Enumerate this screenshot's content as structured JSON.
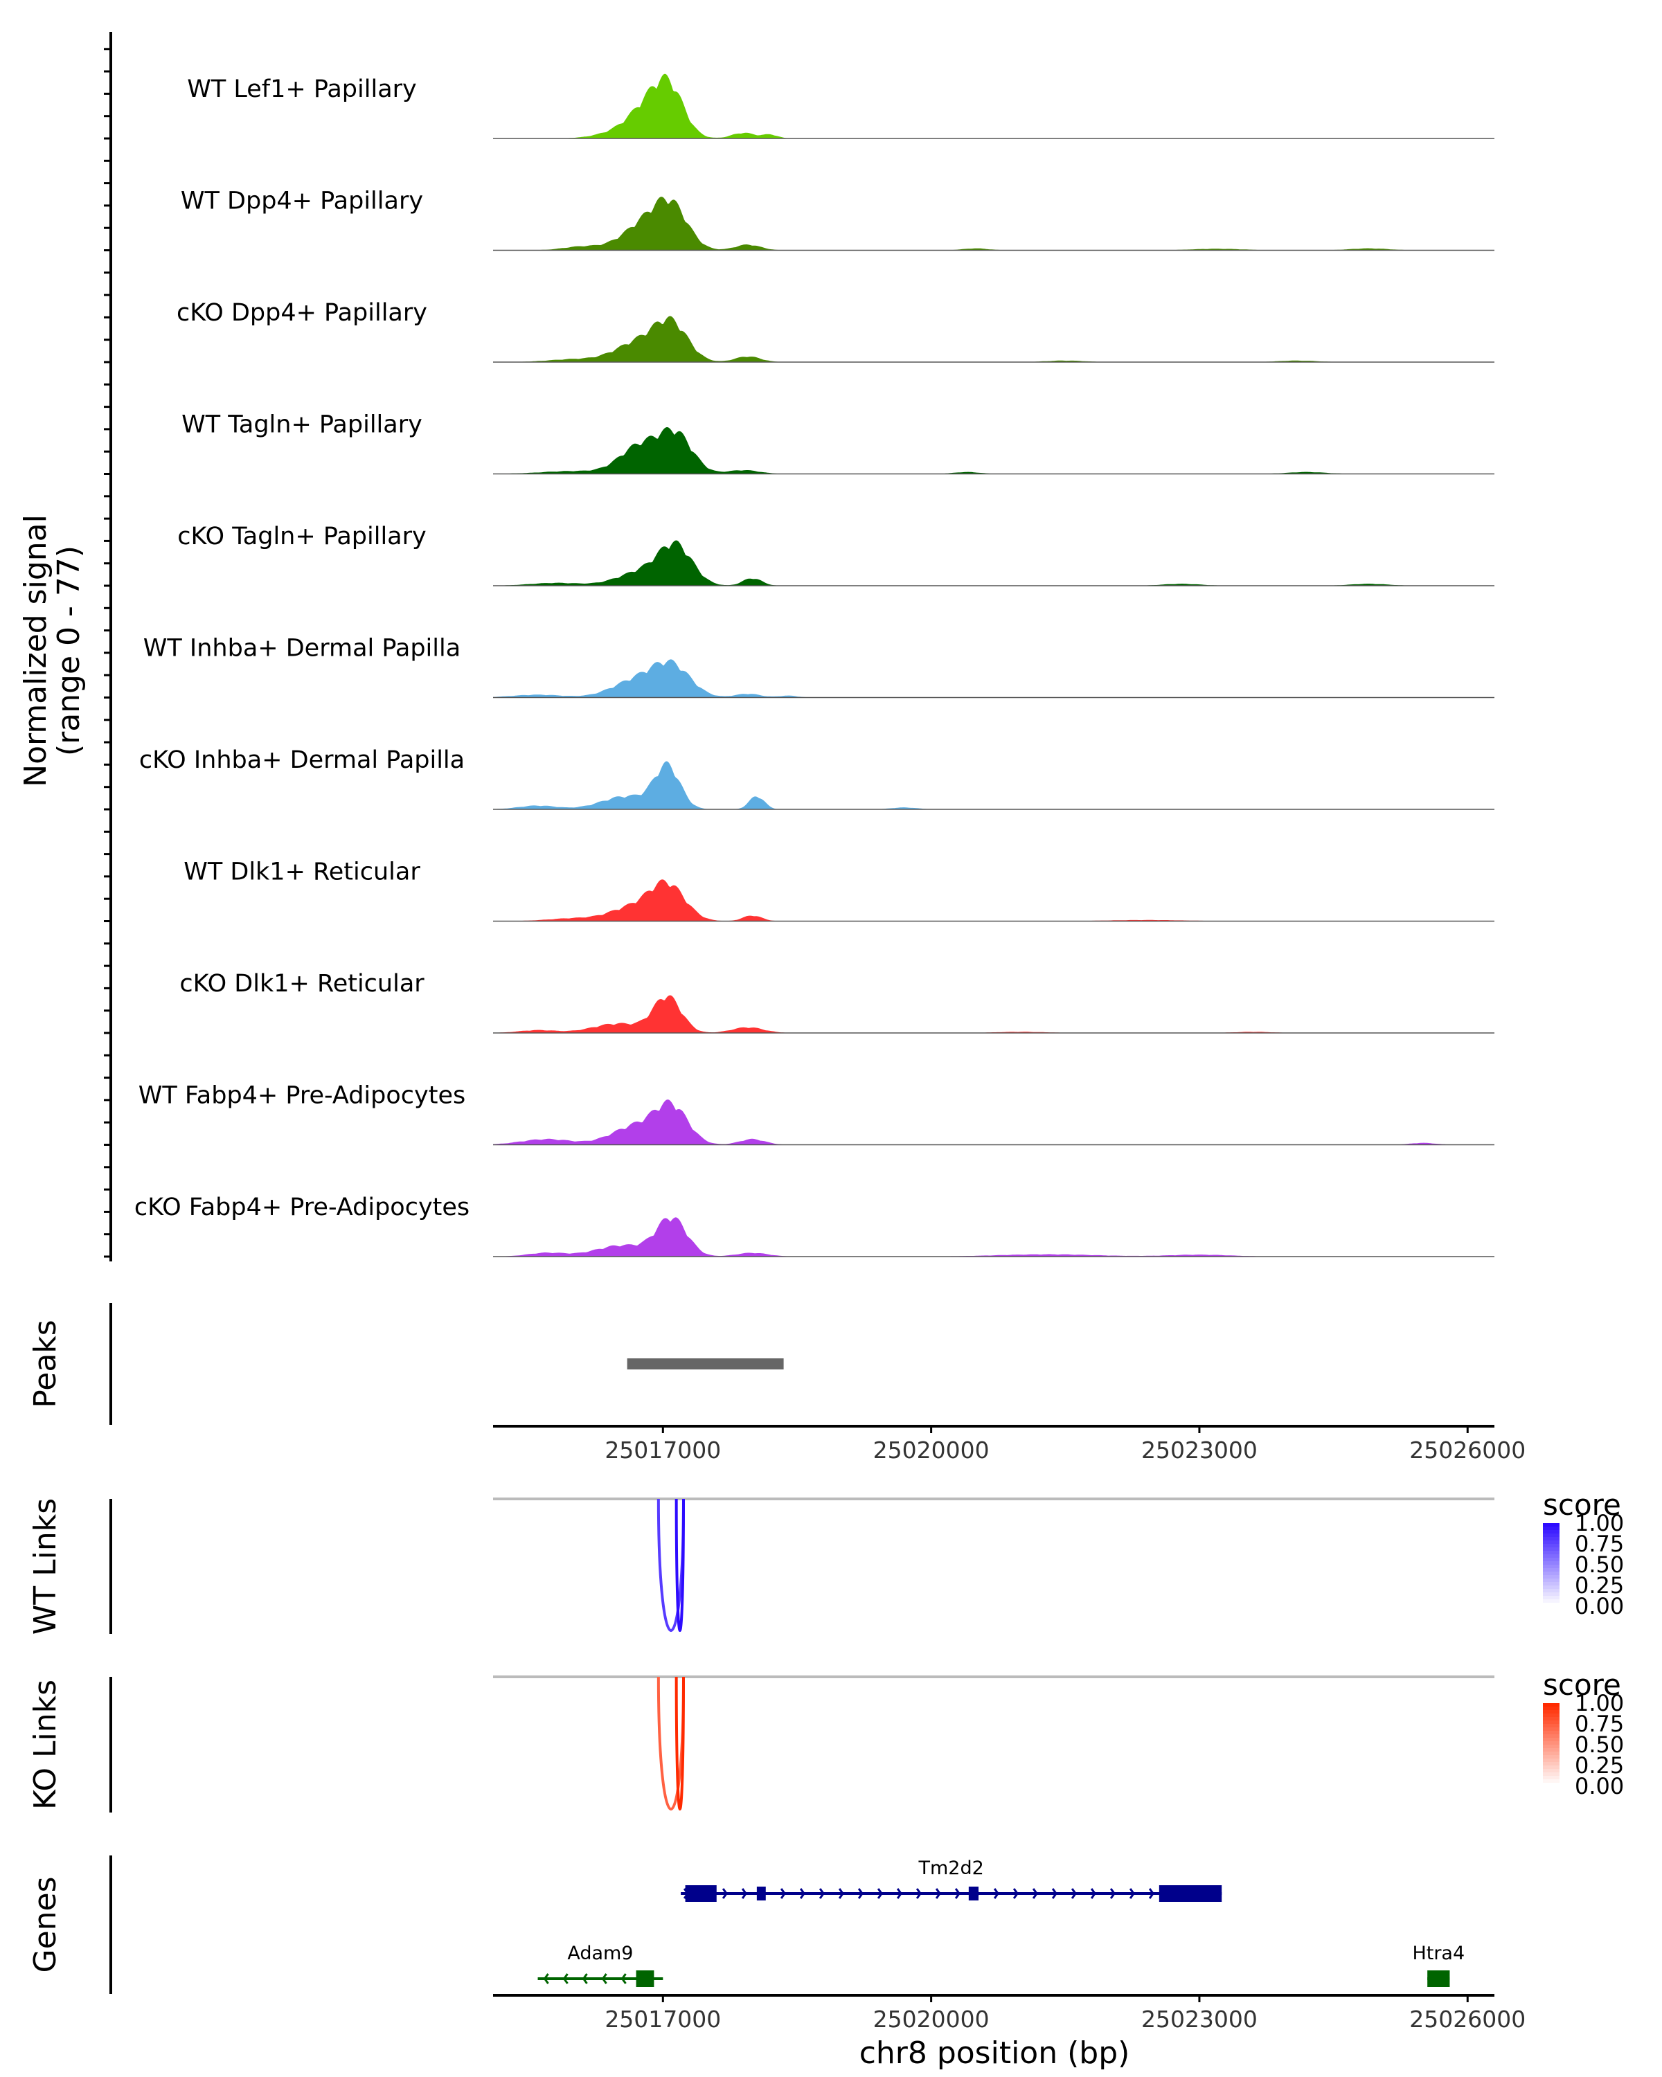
{
  "chart_data": {
    "type": "area",
    "title": "",
    "signal_axis_label": "Normalized signal",
    "signal_axis_range_label": "(range 0 - 77)",
    "ylim": [
      0,
      77
    ],
    "xlabel": "chr8 position (bp)",
    "xlim": [
      25015100,
      25026300
    ],
    "x_ticks": [
      25017000,
      25020000,
      25023000,
      25026000
    ],
    "x_tick_labels": [
      "25017000",
      "25020000",
      "25023000",
      "25026000"
    ],
    "coverage_tracks": [
      {
        "name": "WT Lef1+ Papillary",
        "color": "#66CC00",
        "peaks": [
          [
            25016850,
            320,
            18
          ],
          [
            25017080,
            230,
            20
          ],
          [
            25016400,
            300,
            2
          ],
          [
            25017900,
            180,
            3
          ],
          [
            25018200,
            120,
            2
          ]
        ]
      },
      {
        "name": "WT Dpp4+ Papillary",
        "color": "#4A8A00",
        "peaks": [
          [
            25016800,
            350,
            14
          ],
          [
            25017100,
            260,
            20
          ],
          [
            25016100,
            300,
            2
          ],
          [
            25017950,
            200,
            3
          ],
          [
            25020500,
            200,
            1
          ],
          [
            25024900,
            300,
            1
          ],
          [
            25023200,
            400,
            0.8
          ]
        ]
      },
      {
        "name": "cKO Dpp4+ Papillary",
        "color": "#4A8A00",
        "peaks": [
          [
            25016750,
            380,
            11
          ],
          [
            25017100,
            260,
            18
          ],
          [
            25016000,
            400,
            1.5
          ],
          [
            25017950,
            200,
            3
          ],
          [
            25021500,
            300,
            0.8
          ],
          [
            25024100,
            300,
            0.8
          ]
        ]
      },
      {
        "name": "WT Tagln+ Papillary",
        "color": "#006400",
        "peaks": [
          [
            25016750,
            320,
            15
          ],
          [
            25017150,
            260,
            20
          ],
          [
            25016000,
            500,
            1.5
          ],
          [
            25017900,
            250,
            2
          ],
          [
            25020400,
            200,
            1
          ],
          [
            25024200,
            300,
            1
          ]
        ]
      },
      {
        "name": "cKO Tagln+ Papillary",
        "color": "#006400",
        "peaks": [
          [
            25016800,
            400,
            8
          ],
          [
            25017150,
            260,
            19
          ],
          [
            25015800,
            400,
            1.5
          ],
          [
            25018000,
            150,
            4
          ],
          [
            25022800,
            300,
            1
          ],
          [
            25024900,
            300,
            1
          ]
        ]
      },
      {
        "name": "WT Inhba+ Dermal Papilla",
        "color": "#5DADE2",
        "peaks": [
          [
            25016700,
            380,
            9
          ],
          [
            25017100,
            300,
            16
          ],
          [
            25015600,
            400,
            1.5
          ],
          [
            25017950,
            200,
            2
          ],
          [
            25018400,
            150,
            1
          ]
        ]
      },
      {
        "name": "cKO Inhba+ Dermal Papilla",
        "color": "#5DADE2",
        "peaks": [
          [
            25016600,
            400,
            7
          ],
          [
            25017050,
            200,
            22
          ],
          [
            25015600,
            300,
            2
          ],
          [
            25018050,
            120,
            7
          ],
          [
            25019700,
            200,
            1
          ]
        ]
      },
      {
        "name": "WT Dlk1+ Reticular",
        "color": "#FF3333",
        "peaks": [
          [
            25016650,
            350,
            7
          ],
          [
            25017050,
            280,
            19
          ],
          [
            25016000,
            400,
            1.5
          ],
          [
            25018000,
            150,
            3
          ],
          [
            25022400,
            600,
            0.6
          ]
        ]
      },
      {
        "name": "cKO Dlk1+ Reticular",
        "color": "#FF3333",
        "peaks": [
          [
            25016500,
            400,
            5
          ],
          [
            25017050,
            220,
            19
          ],
          [
            25015600,
            300,
            1.5
          ],
          [
            25017950,
            250,
            3
          ],
          [
            25021000,
            400,
            0.6
          ],
          [
            25023600,
            300,
            0.6
          ]
        ]
      },
      {
        "name": "WT Fabp4+ Pre-Adipocytes",
        "color": "#B23FEA",
        "peaks": [
          [
            25016700,
            380,
            10
          ],
          [
            25017100,
            260,
            19
          ],
          [
            25015700,
            400,
            3
          ],
          [
            25018000,
            200,
            3
          ],
          [
            25025500,
            200,
            1
          ]
        ]
      },
      {
        "name": "cKO Fabp4+ Pre-Adipocytes",
        "color": "#B23FEA",
        "peaks": [
          [
            25016550,
            420,
            6
          ],
          [
            25017100,
            240,
            20
          ],
          [
            25015700,
            300,
            2
          ],
          [
            25018000,
            250,
            2
          ],
          [
            25021300,
            800,
            1.2
          ],
          [
            25023000,
            500,
            1
          ]
        ]
      }
    ],
    "peaks_track": {
      "label": "Peaks",
      "color": "#666666",
      "regions": [
        [
          25016600,
          25018350
        ]
      ]
    },
    "link_tracks": [
      {
        "label": "WT Links",
        "legend_title": "score",
        "high_color": "#2D0BFF",
        "legend_ticks": [
          "1.00",
          "0.75",
          "0.50",
          "0.25",
          "0.00"
        ],
        "links": [
          [
            25016950,
            25017230,
            0.7
          ],
          [
            25017150,
            25017230,
            1.0
          ]
        ]
      },
      {
        "label": "KO Links",
        "legend_title": "score",
        "high_color": "#FF2A00",
        "legend_ticks": [
          "1.00",
          "0.75",
          "0.50",
          "0.25",
          "0.00"
        ],
        "links": [
          [
            25016950,
            25017230,
            0.6
          ],
          [
            25017150,
            25017230,
            1.0
          ]
        ]
      }
    ],
    "genes_track": {
      "label": "Genes",
      "genes": [
        {
          "name": "Tm2d2",
          "strand": "+",
          "color": "#00008B",
          "start": 25017200,
          "end": 25023250,
          "row": 0,
          "exons": [
            [
              25017250,
              25017600,
              "wide"
            ],
            [
              25018050,
              25018150,
              "thin"
            ],
            [
              25020420,
              25020530,
              "thin"
            ],
            [
              25022550,
              25023250,
              "wide"
            ]
          ]
        },
        {
          "name": "Adam9",
          "strand": "-",
          "color": "#006400",
          "start": 25015600,
          "end": 25017000,
          "row": 1,
          "exons": [
            [
              25016700,
              25016900,
              "wide"
            ]
          ]
        },
        {
          "name": "Htra4",
          "strand": "+",
          "color": "#006400",
          "start": 25025550,
          "end": 25025800,
          "row": 1,
          "exons": [
            [
              25025550,
              25025800,
              "wide"
            ]
          ]
        }
      ]
    }
  }
}
